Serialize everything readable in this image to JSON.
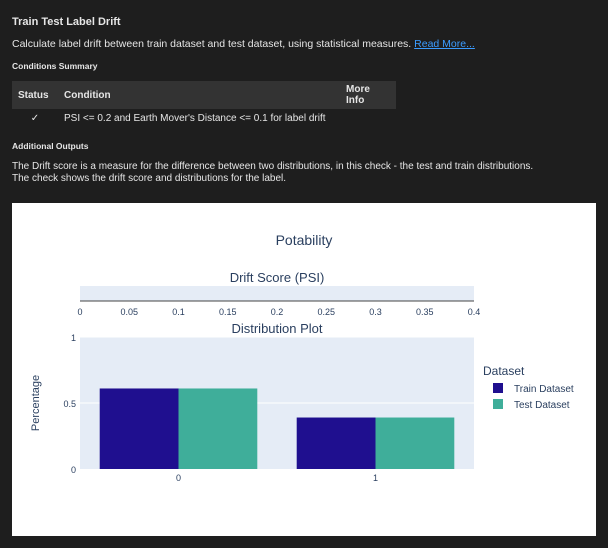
{
  "title": "Train Test Label Drift",
  "description": "Calculate label drift between train dataset and test dataset, using statistical measures.",
  "read_more": "Read More...",
  "conditions_heading": "Conditions Summary",
  "conditions": {
    "headers": [
      "Status",
      "Condition",
      "More Info"
    ],
    "rows": [
      {
        "status": "✓",
        "condition": "PSI <= 0.2 and Earth Mover's Distance <= 0.1 for label drift",
        "more_info": ""
      }
    ]
  },
  "additional_heading": "Additional Outputs",
  "additional_text_1": "The Drift score is a measure for the difference between two distributions, in this check - the test and train distributions.",
  "additional_text_2": "The check shows the drift score and distributions for the label.",
  "colors": {
    "train": "#1f0f8f",
    "test": "#3fae9a",
    "plot_bg": "#e5ecf6"
  },
  "chart_data": [
    {
      "type": "bar",
      "title": "Drift Score (PSI)",
      "suptitle": "Potability",
      "xlim": [
        0,
        0.4
      ],
      "xticks": [
        "0",
        "0.05",
        "0.1",
        "0.15",
        "0.2",
        "0.25",
        "0.3",
        "0.35",
        "0.4"
      ],
      "values": [
        0
      ]
    },
    {
      "type": "bar",
      "title": "Distribution Plot",
      "ylabel": "Percentage",
      "categories": [
        "0",
        "1"
      ],
      "ylim": [
        0,
        1
      ],
      "yticks": [
        "0",
        "0.5",
        "1"
      ],
      "legend_title": "Dataset",
      "series": [
        {
          "name": "Train Dataset",
          "values": [
            0.61,
            0.39
          ]
        },
        {
          "name": "Test Dataset",
          "values": [
            0.61,
            0.39
          ]
        }
      ]
    }
  ]
}
